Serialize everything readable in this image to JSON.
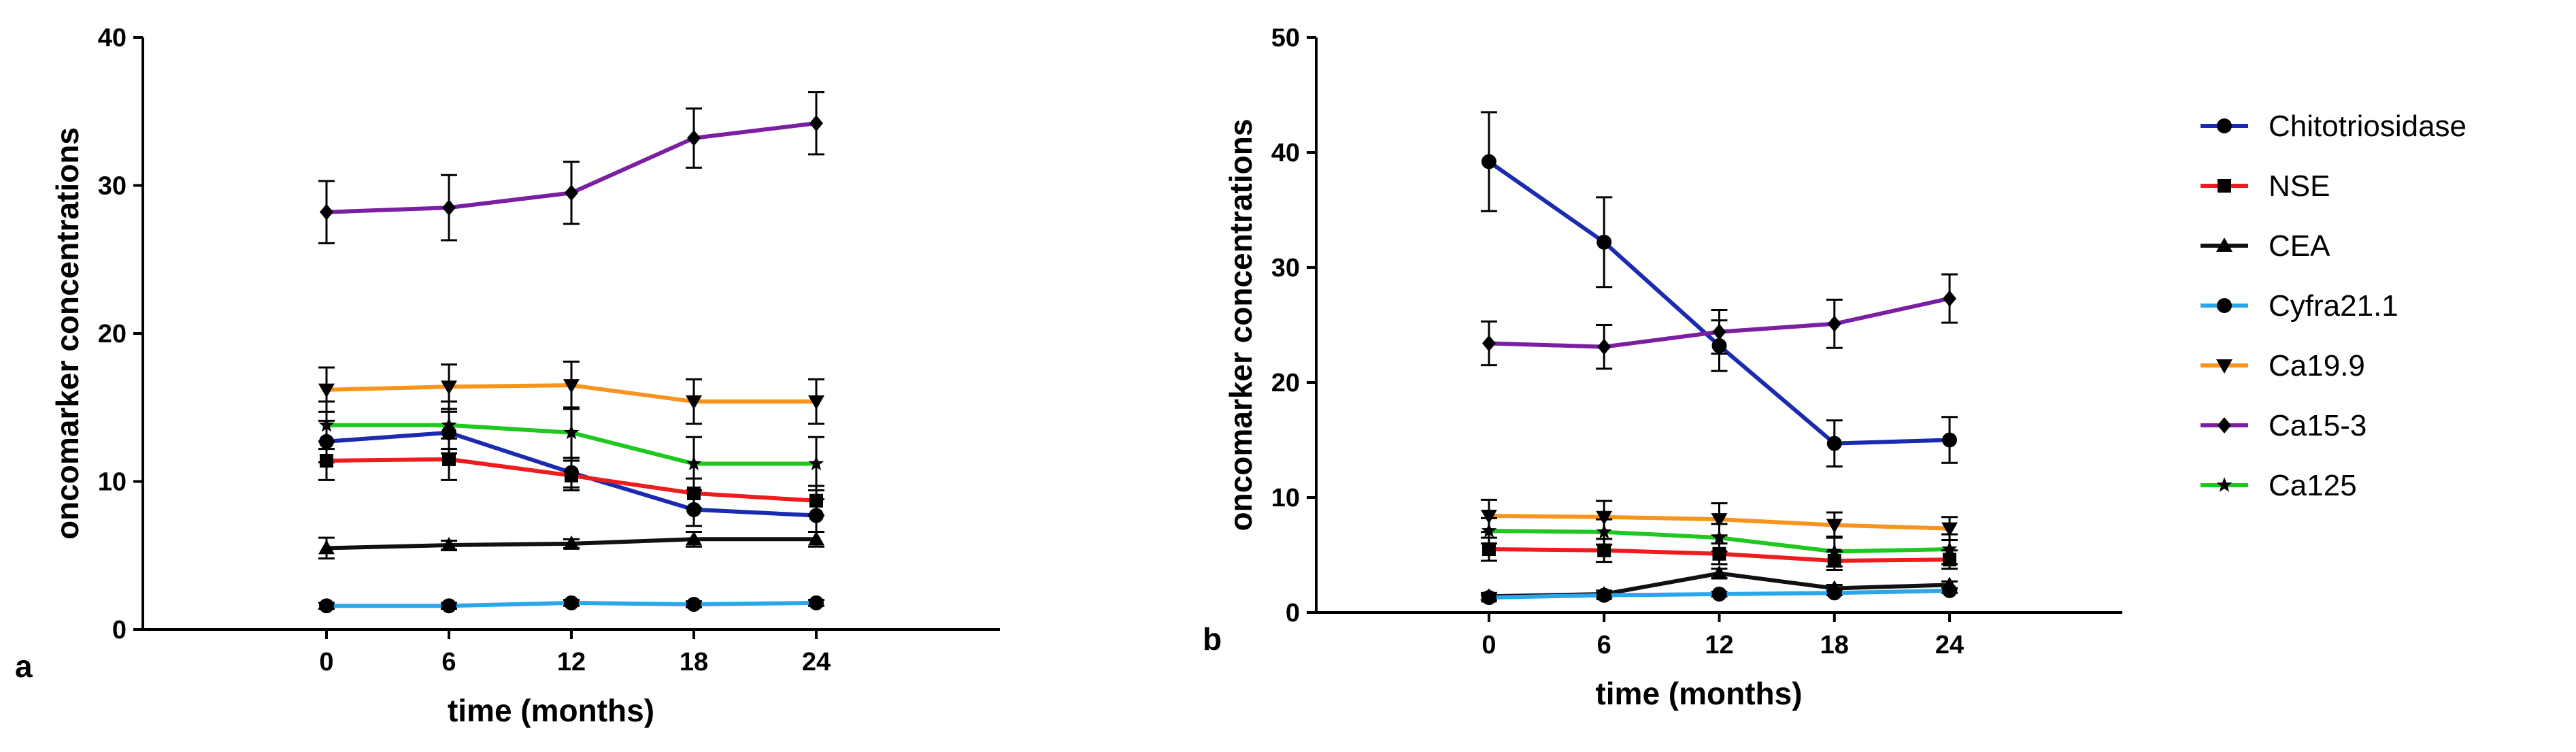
{
  "figure_labels": {
    "a": "a",
    "b": "b"
  },
  "colors": {
    "Chitotriosidase": "#1a2bb0",
    "NSE": "#ee1c1c",
    "CEA": "#111111",
    "Cyfra21.1": "#2aa6ea",
    "Ca19.9": "#f7941d",
    "Ca15-3": "#7b1fa2",
    "Ca125": "#1ec81e"
  },
  "legend": [
    {
      "name": "Chitotriosidase",
      "marker": "circle",
      "color": "#1a2bb0"
    },
    {
      "name": "NSE",
      "marker": "square",
      "color": "#ee1c1c"
    },
    {
      "name": "CEA",
      "marker": "triangle-up",
      "color": "#111111"
    },
    {
      "name": "Cyfra21.1",
      "marker": "circle",
      "color": "#2aa6ea"
    },
    {
      "name": "Ca19.9",
      "marker": "triangle-down",
      "color": "#f7941d"
    },
    {
      "name": "Ca15-3",
      "marker": "diamond",
      "color": "#7b1fa2"
    },
    {
      "name": "Ca125",
      "marker": "star",
      "color": "#1ec81e"
    }
  ],
  "chart_data": [
    {
      "panel": "a",
      "type": "line",
      "xlabel": "time (months)",
      "ylabel": "oncomarker concentrations",
      "x": [
        0,
        6,
        12,
        18,
        24
      ],
      "xlim": [
        -9,
        33
      ],
      "ylim": [
        0,
        40
      ],
      "yticks": [
        0,
        10,
        20,
        30,
        40
      ],
      "series": [
        {
          "name": "Ca15-3",
          "marker": "diamond",
          "values": [
            28.2,
            28.5,
            29.5,
            33.2,
            34.2
          ],
          "errors": [
            2.1,
            2.2,
            2.1,
            2.0,
            2.1
          ]
        },
        {
          "name": "Ca19.9",
          "marker": "triangle-down",
          "values": [
            16.2,
            16.4,
            16.5,
            15.4,
            15.4
          ],
          "errors": [
            1.5,
            1.5,
            1.6,
            1.5,
            1.5
          ]
        },
        {
          "name": "Ca125",
          "marker": "star",
          "values": [
            13.8,
            13.8,
            13.3,
            11.2,
            11.2
          ],
          "errors": [
            1.6,
            1.6,
            1.7,
            1.8,
            1.8
          ]
        },
        {
          "name": "Chitotriosidase",
          "marker": "circle",
          "values": [
            12.7,
            13.3,
            10.6,
            8.1,
            7.7
          ],
          "errors": [
            1.4,
            1.4,
            1.0,
            1.1,
            1.1
          ]
        },
        {
          "name": "NSE",
          "marker": "square",
          "values": [
            11.4,
            11.5,
            10.4,
            9.2,
            8.7
          ],
          "errors": [
            1.3,
            1.4,
            1.0,
            1.0,
            1.0
          ]
        },
        {
          "name": "CEA",
          "marker": "triangle-up",
          "values": [
            5.5,
            5.7,
            5.8,
            6.1,
            6.1
          ],
          "errors": [
            0.7,
            0.3,
            0.3,
            0.5,
            0.5
          ]
        },
        {
          "name": "Cyfra21.1",
          "marker": "circle",
          "values": [
            1.6,
            1.6,
            1.8,
            1.7,
            1.8
          ],
          "errors": [
            0.2,
            0.2,
            0.2,
            0.2,
            0.2
          ]
        }
      ]
    },
    {
      "panel": "b",
      "type": "line",
      "xlabel": "time (months)",
      "ylabel": "oncomarker concentrations",
      "x": [
        0,
        6,
        12,
        18,
        24
      ],
      "xlim": [
        -9,
        33
      ],
      "ylim": [
        0,
        50
      ],
      "yticks": [
        0,
        10,
        20,
        30,
        40,
        50
      ],
      "series": [
        {
          "name": "Chitotriosidase",
          "marker": "circle",
          "values": [
            39.2,
            32.2,
            23.2,
            14.7,
            15.0
          ],
          "errors": [
            4.3,
            3.9,
            2.2,
            2.0,
            2.0
          ]
        },
        {
          "name": "Ca15-3",
          "marker": "diamond",
          "values": [
            23.4,
            23.1,
            24.4,
            25.1,
            27.3
          ],
          "errors": [
            1.9,
            1.9,
            1.9,
            2.1,
            2.1
          ]
        },
        {
          "name": "Ca19.9",
          "marker": "triangle-down",
          "values": [
            8.4,
            8.3,
            8.1,
            7.6,
            7.3
          ],
          "errors": [
            1.4,
            1.4,
            1.4,
            1.1,
            1.0
          ]
        },
        {
          "name": "Ca125",
          "marker": "star",
          "values": [
            7.1,
            7.0,
            6.5,
            5.3,
            5.5
          ],
          "errors": [
            1.1,
            1.1,
            1.2,
            1.3,
            1.3
          ]
        },
        {
          "name": "NSE",
          "marker": "square",
          "values": [
            5.5,
            5.4,
            5.1,
            4.5,
            4.6
          ],
          "errors": [
            1.0,
            1.0,
            0.9,
            0.8,
            0.8
          ]
        },
        {
          "name": "CEA",
          "marker": "triangle-up",
          "values": [
            1.4,
            1.6,
            3.4,
            2.1,
            2.4
          ],
          "errors": [
            0.3,
            0.3,
            0.4,
            0.3,
            0.3
          ]
        },
        {
          "name": "Cyfra21.1",
          "marker": "circle",
          "values": [
            1.3,
            1.5,
            1.6,
            1.7,
            1.9
          ],
          "errors": [
            0.2,
            0.2,
            0.2,
            0.2,
            0.2
          ]
        }
      ]
    }
  ]
}
